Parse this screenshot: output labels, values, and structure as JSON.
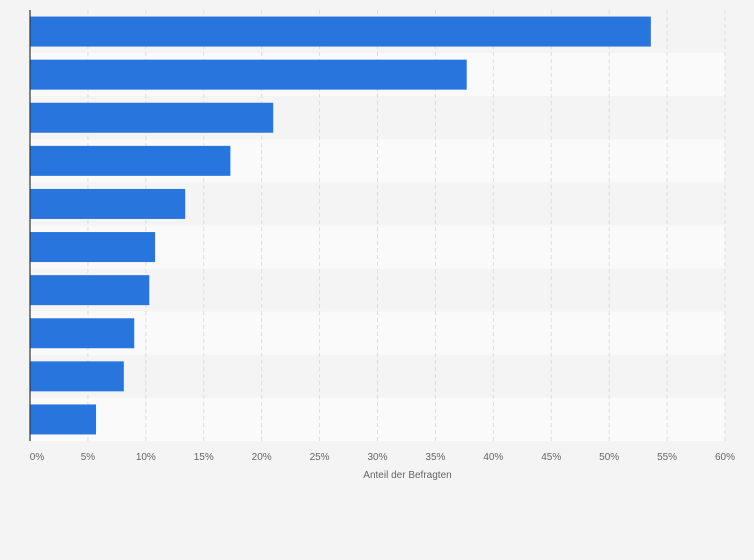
{
  "chart_data": {
    "type": "bar",
    "orientation": "horizontal",
    "title": "",
    "categories": [
      "",
      "",
      "",
      "",
      "",
      "",
      "",
      "",
      "",
      ""
    ],
    "values": [
      53.6,
      37.7,
      21.0,
      17.3,
      13.4,
      10.8,
      10.3,
      9.0,
      8.1,
      5.7
    ],
    "xlabel": "Anteil der Befragten",
    "ylabel": "",
    "xlim": [
      0,
      60
    ],
    "x_ticks": [
      0,
      5,
      10,
      15,
      20,
      25,
      30,
      35,
      40,
      45,
      50,
      55,
      60
    ],
    "x_tick_labels": [
      "0%",
      "5%",
      "10%",
      "15%",
      "20%",
      "25%",
      "30%",
      "35%",
      "40%",
      "45%",
      "50%",
      "55%",
      "60%"
    ],
    "grid": true,
    "legend": "none",
    "bar_color": "#2876dd",
    "band_colors": [
      "#f4f4f4",
      "#fafafa"
    ],
    "grid_color": "#dddddd",
    "axis_color": "#333333"
  }
}
